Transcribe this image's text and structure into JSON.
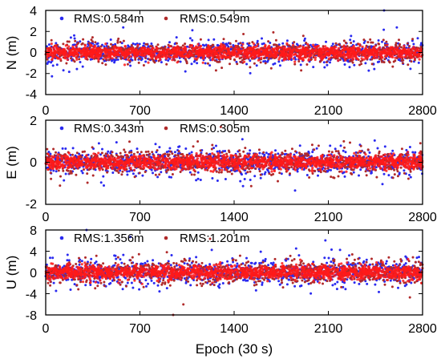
{
  "colors": {
    "series_a": "#2a2af0",
    "series_b": "#b02a2a",
    "overlay": "#ff1a1a",
    "halo": "#ff9ad8"
  },
  "chart_data": [
    {
      "type": "scatter",
      "ylabel": "N (m)",
      "xlim": [
        0,
        2800
      ],
      "ylim": [
        -4,
        4
      ],
      "xticks": [
        "0",
        "700",
        "1400",
        "2100",
        "2800"
      ],
      "yticks": [
        "-4",
        "-2",
        "0",
        "2",
        "4"
      ],
      "legend_placement": "top-left",
      "series": [
        {
          "label": "RMS:0.584m",
          "rms": 0.584
        },
        {
          "label": "RMS:0.549m",
          "rms": 0.549
        }
      ]
    },
    {
      "type": "scatter",
      "ylabel": "E (m)",
      "xlim": [
        0,
        2800
      ],
      "ylim": [
        -2,
        2
      ],
      "xticks": [
        "0",
        "700",
        "1400",
        "2100",
        "2800"
      ],
      "yticks": [
        "-2",
        "0",
        "2"
      ],
      "legend_placement": "top-left",
      "series": [
        {
          "label": "RMS:0.343m",
          "rms": 0.343
        },
        {
          "label": "RMS:0.305m",
          "rms": 0.305
        }
      ]
    },
    {
      "type": "scatter",
      "ylabel": "U (m)",
      "xlabel": "Epoch (30 s)",
      "xlim": [
        0,
        2800
      ],
      "ylim": [
        -8,
        8
      ],
      "xticks": [
        "0",
        "700",
        "1400",
        "2100",
        "2800"
      ],
      "yticks": [
        "-8",
        "-4",
        "0",
        "4",
        "8"
      ],
      "legend_placement": "top-left",
      "series": [
        {
          "label": "RMS:1.356m",
          "rms": 1.356
        },
        {
          "label": "RMS:1.201m",
          "rms": 1.201
        }
      ]
    }
  ]
}
